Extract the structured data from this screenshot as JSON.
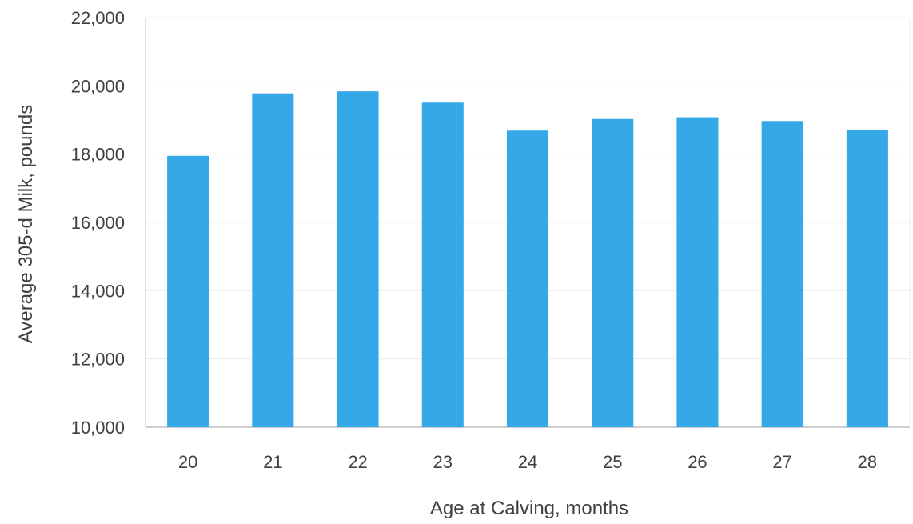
{
  "chart_data": {
    "type": "bar",
    "categories": [
      "20",
      "21",
      "22",
      "23",
      "24",
      "25",
      "26",
      "27",
      "28"
    ],
    "values": [
      17950,
      19780,
      19840,
      19510,
      18690,
      19030,
      19080,
      18970,
      18720
    ],
    "xlabel": "Age at Calving, months",
    "ylabel": "Average 305-d Milk, pounds",
    "ylim": [
      10000,
      22000
    ],
    "yticks": [
      "10,000",
      "12,000",
      "14,000",
      "16,000",
      "18,000",
      "20,000",
      "22,000"
    ],
    "grid": true,
    "legend": "none",
    "bar_color": "#35A9E8",
    "grid_color": "#ECECEC",
    "axis_color": "#BFBFBF"
  }
}
